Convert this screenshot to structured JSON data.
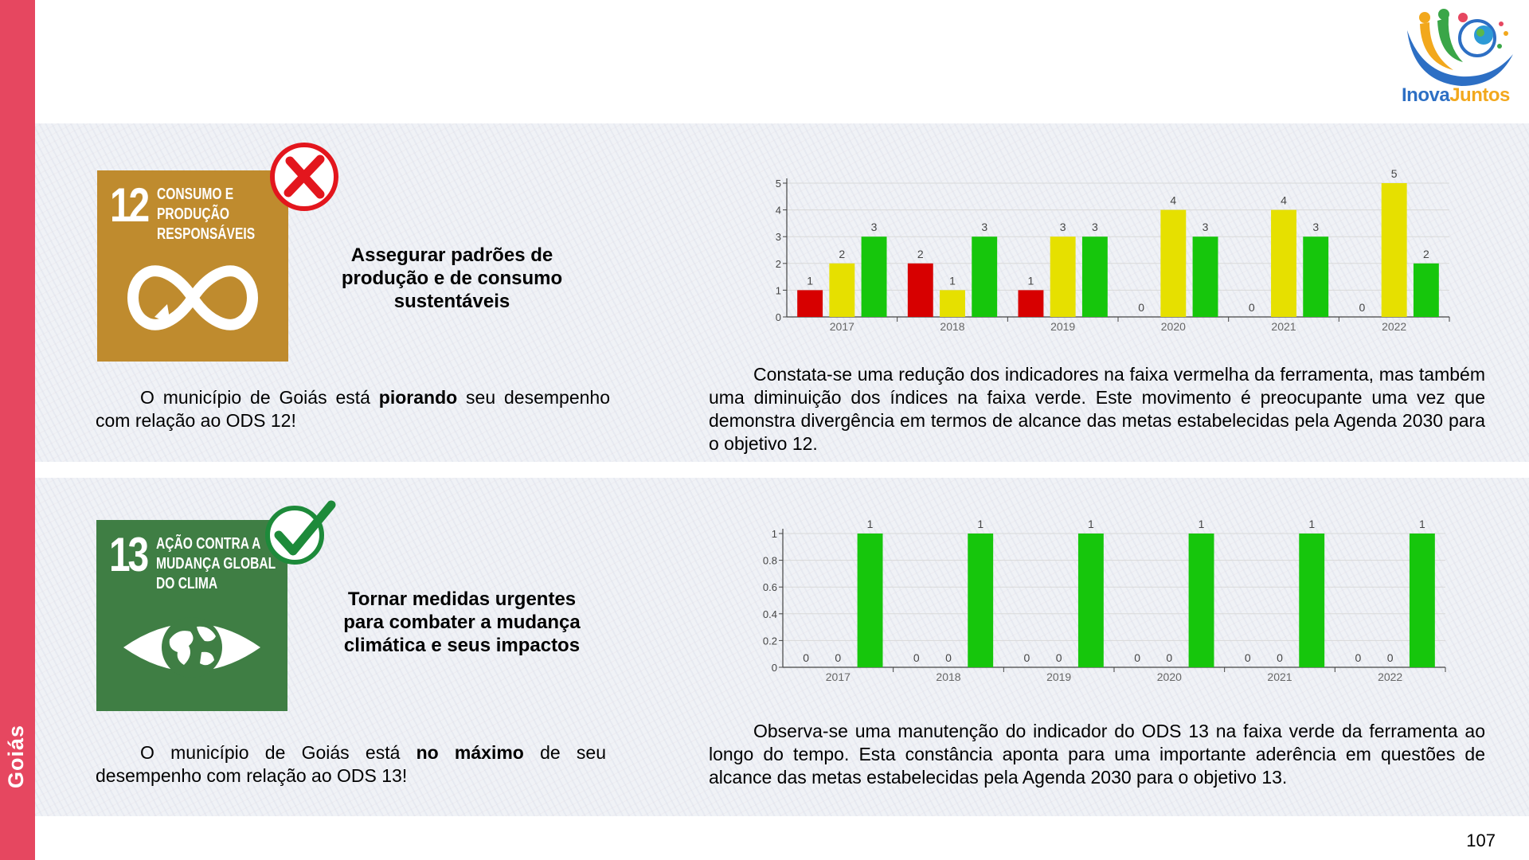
{
  "sidebar": {
    "label": "Goiás"
  },
  "logo": {
    "text_a": "Inova",
    "text_b": "Juntos"
  },
  "page_number": "107",
  "colors": {
    "sidebar": "#e64760",
    "red": "#d70000",
    "yellow": "#e6e000",
    "green": "#16c60c",
    "sdg12": "#bf8b2e",
    "sdg13": "#3f7e44"
  },
  "sdg12": {
    "number": "12",
    "title": "Consumo e\nprodução\nresponsáveis",
    "icon": "infinity-icon",
    "status_icon": "red-x-icon",
    "heading": "Assegurar padrões de\nprodução e de consumo\nsustentáveis",
    "summary_pre": "O município de Goiás está ",
    "summary_bold": "piorando",
    "summary_post": " seu desempenho com relação ao ODS 12!",
    "analysis": "Constata-se uma redução dos indicadores na faixa vermelha da ferramenta, mas também uma diminuição dos índices na faixa verde. Este movimento é preocupante uma vez que demonstra divergência em termos de alcance das metas estabelecidas pela Agenda 2030 para o objetivo 12."
  },
  "sdg13": {
    "number": "13",
    "title": "Ação contra a\nmudança global\ndo clima",
    "icon": "eye-globe-icon",
    "status_icon": "green-check-icon",
    "heading": "Tornar medidas urgentes\npara combater a mudança\nclimática e seus impactos",
    "summary_pre": "O município de Goiás está ",
    "summary_bold": "no máximo",
    "summary_post": " de seu desempenho com relação ao ODS 13!",
    "analysis": "Observa-se uma manutenção do indicador do ODS 13 na faixa verde da ferramenta ao longo do tempo. Esta constância aponta para uma importante aderência em questões de alcance das metas estabelecidas pela Agenda 2030 para o objetivo 13."
  },
  "chart_data": [
    {
      "type": "bar",
      "categories": [
        "2017",
        "2018",
        "2019",
        "2020",
        "2021",
        "2022"
      ],
      "series": [
        {
          "color": "#d70000",
          "values": [
            1,
            2,
            1,
            0,
            0,
            0
          ]
        },
        {
          "color": "#e6e000",
          "values": [
            2,
            1,
            3,
            4,
            4,
            5
          ]
        },
        {
          "color": "#16c60c",
          "values": [
            3,
            3,
            3,
            3,
            3,
            2
          ]
        }
      ],
      "yticks": [
        "0",
        "1",
        "2",
        "3",
        "4",
        "5"
      ],
      "ylim": [
        0,
        5
      ],
      "grid": true
    },
    {
      "type": "bar",
      "categories": [
        "2017",
        "2018",
        "2019",
        "2020",
        "2021",
        "2022"
      ],
      "series": [
        {
          "color": "#d70000",
          "values": [
            0,
            0,
            0,
            0,
            0,
            0
          ]
        },
        {
          "color": "#e6e000",
          "values": [
            0,
            0,
            0,
            0,
            0,
            0
          ]
        },
        {
          "color": "#16c60c",
          "values": [
            1,
            1,
            1,
            1,
            1,
            1
          ]
        }
      ],
      "yticks": [
        "0",
        "0.2",
        "0.4",
        "0.6",
        "0.8",
        "1"
      ],
      "ylim": [
        0,
        1
      ],
      "grid": true
    }
  ]
}
